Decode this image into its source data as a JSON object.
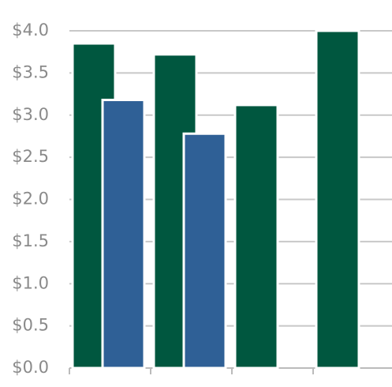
{
  "chart_data": {
    "type": "bar",
    "categories": [
      null,
      null,
      null,
      null
    ],
    "series": [
      {
        "color": "#00573f",
        "values": [
          3.85,
          3.72,
          3.12,
          4.0
        ]
      },
      {
        "color": "#2f6096",
        "values": [
          3.18,
          2.78,
          null,
          null
        ]
      }
    ],
    "ylim": [
      0,
      4
    ],
    "yticks": [
      {
        "value": 0,
        "label": "$0.0"
      },
      {
        "value": 0.5,
        "label": "$0.5"
      },
      {
        "value": 1,
        "label": "$1.0"
      },
      {
        "value": 1.5,
        "label": "$1.5"
      },
      {
        "value": 2,
        "label": "$2.0"
      },
      {
        "value": 2.5,
        "label": "$2.5"
      },
      {
        "value": 3,
        "label": "$3.0"
      },
      {
        "value": 3.5,
        "label": "$3.5"
      },
      {
        "value": 4,
        "label": "$4.0"
      }
    ],
    "grid": true
  }
}
